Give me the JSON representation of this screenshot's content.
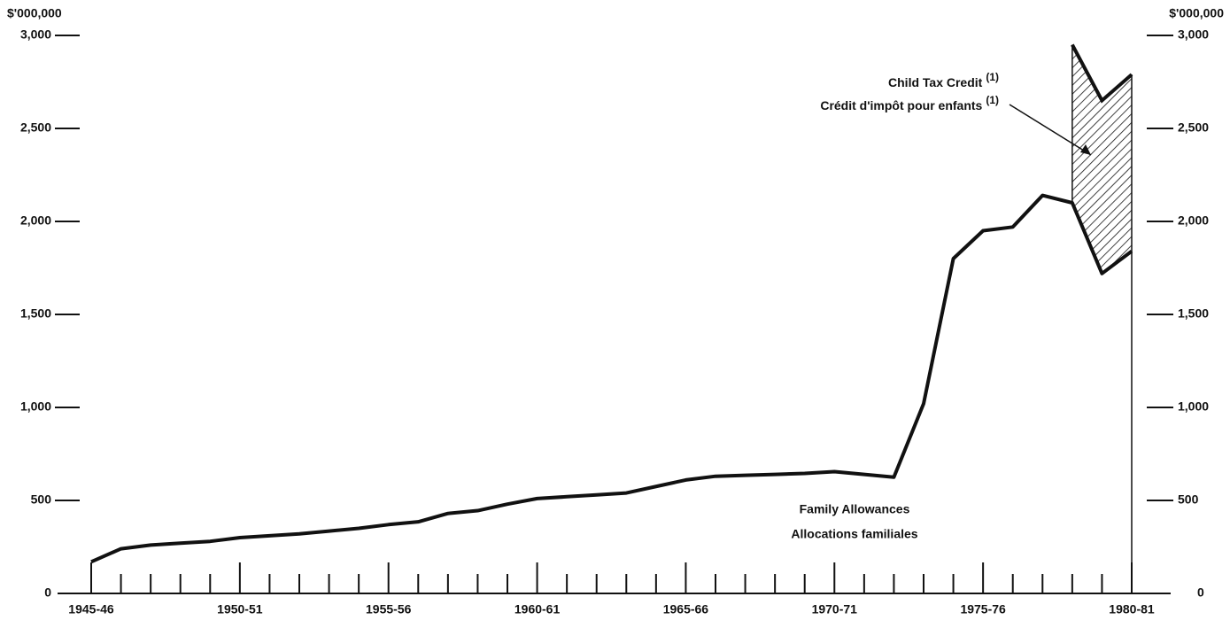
{
  "chart_data": {
    "type": "line",
    "y_label": "$'000,000",
    "y2_label": "$'000,000",
    "categories": [
      "1945-46",
      null,
      null,
      null,
      null,
      "1950-51",
      null,
      null,
      null,
      null,
      "1955-56",
      null,
      null,
      null,
      null,
      "1960-61",
      null,
      null,
      null,
      null,
      "1965-66",
      null,
      null,
      null,
      null,
      "1970-71",
      null,
      null,
      null,
      null,
      "1975-76",
      null,
      null,
      null,
      null,
      "1980-81"
    ],
    "series": [
      {
        "name": "Family Allowances",
        "name_fr": "Allocations familiales",
        "color": "#111111",
        "values": [
          170,
          240,
          260,
          270,
          280,
          300,
          310,
          320,
          335,
          350,
          370,
          385,
          430,
          445,
          480,
          510,
          520,
          530,
          540,
          575,
          610,
          630,
          635,
          640,
          645,
          655,
          640,
          625,
          1020,
          1800,
          1950,
          1970,
          2140,
          2100,
          1720,
          1840
        ]
      },
      {
        "name": "Child Tax Credit",
        "name_fr": "Crédit d'impôt pour enfants",
        "note": "(1)",
        "color": "#111111",
        "stacked_on": 0,
        "values": [
          null,
          null,
          null,
          null,
          null,
          null,
          null,
          null,
          null,
          null,
          null,
          null,
          null,
          null,
          null,
          null,
          null,
          null,
          null,
          null,
          null,
          null,
          null,
          null,
          null,
          null,
          null,
          null,
          null,
          null,
          null,
          null,
          null,
          850,
          930,
          950
        ]
      }
    ],
    "ylim": [
      0,
      3000
    ],
    "yticks": [
      0,
      500,
      {
        "value": 1000,
        "label": "1,000"
      },
      {
        "value": 1500,
        "label": "1,500"
      },
      {
        "value": 2000,
        "label": "2,000"
      },
      {
        "value": 2500,
        "label": "2,500"
      },
      {
        "value": 3000,
        "label": "3,000"
      }
    ],
    "y2lim": [
      0,
      3000
    ],
    "y2ticks": [
      0,
      500,
      {
        "value": 1000,
        "label": "1,000"
      },
      {
        "value": 1500,
        "label": "1,500"
      },
      {
        "value": 2000,
        "label": "2,000"
      },
      {
        "value": 2500,
        "label": "2,500"
      },
      {
        "value": 3000,
        "label": "3,000"
      }
    ]
  }
}
